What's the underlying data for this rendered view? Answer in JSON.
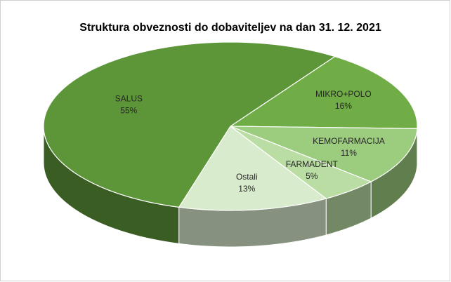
{
  "chart_data": {
    "type": "pie3d",
    "title": "Struktura obveznosti do dobaviteljev na dan 31. 12. 2021",
    "categories": [
      "MIKRO+POLO",
      "KEMOFARMACIJA",
      "FARMADENT",
      "Ostali",
      "SALUS"
    ],
    "values": [
      16,
      11,
      5,
      13,
      55
    ],
    "value_labels": [
      "16%",
      "11%",
      "5%",
      "13%",
      "55%"
    ],
    "colors": [
      "#70ad47",
      "#9ccc7e",
      "#badda3",
      "#d8ebcd",
      "#5d9639"
    ]
  }
}
